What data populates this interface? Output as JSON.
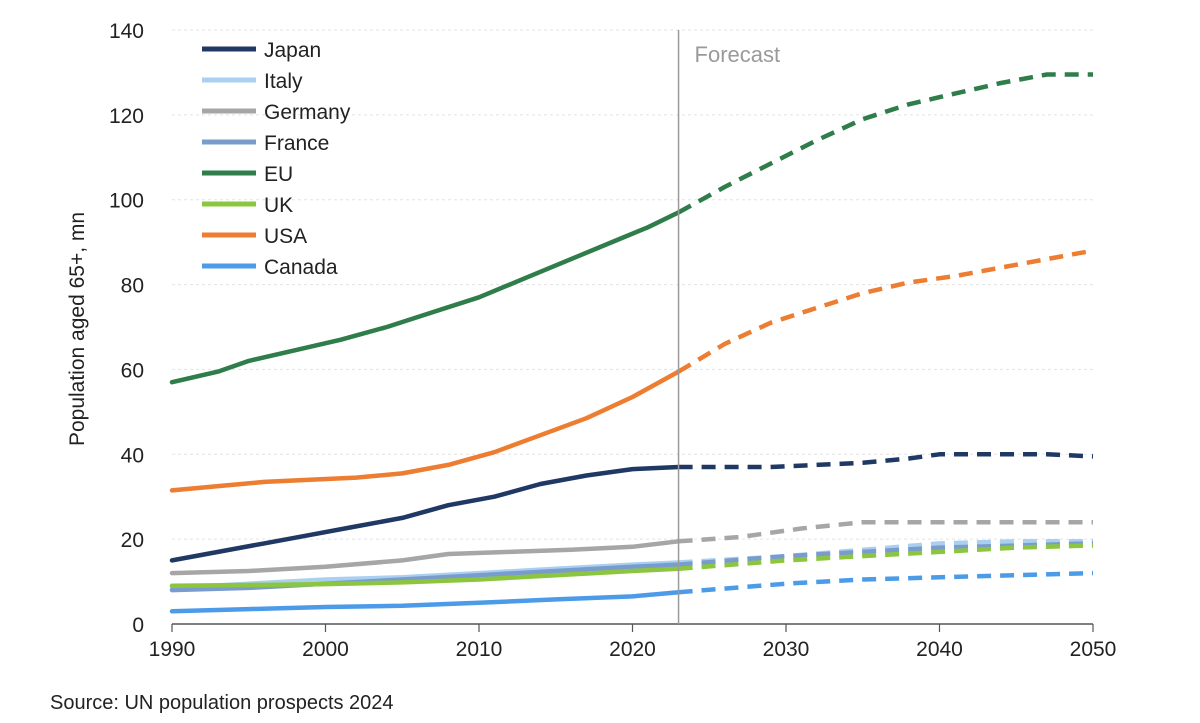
{
  "chart_data": {
    "type": "line",
    "title": "",
    "xlabel": "",
    "ylabel": "Population aged 65+, mn",
    "xlim": [
      1990,
      2050
    ],
    "ylim": [
      0,
      140
    ],
    "x_ticks": [
      1990,
      2000,
      2010,
      2020,
      2030,
      2040,
      2050
    ],
    "y_ticks": [
      0,
      20,
      40,
      60,
      80,
      100,
      120,
      140
    ],
    "forecast_start": 2023,
    "forecast_label": "Forecast",
    "legend_position": "top-left",
    "series": [
      {
        "name": "Japan",
        "color": "#1f3864",
        "points": [
          [
            1990,
            15
          ],
          [
            1993,
            17
          ],
          [
            1996,
            19
          ],
          [
            1999,
            21
          ],
          [
            2002,
            23
          ],
          [
            2005,
            25
          ],
          [
            2008,
            28
          ],
          [
            2011,
            30
          ],
          [
            2014,
            33
          ],
          [
            2017,
            35
          ],
          [
            2020,
            36.5
          ],
          [
            2023,
            37
          ],
          [
            2026,
            37
          ],
          [
            2029,
            37
          ],
          [
            2032,
            37.5
          ],
          [
            2035,
            38
          ],
          [
            2038,
            39
          ],
          [
            2040,
            40
          ],
          [
            2044,
            40
          ],
          [
            2047,
            40
          ],
          [
            2050,
            39.5
          ]
        ]
      },
      {
        "name": "Italy",
        "color": "#a9d0f1",
        "points": [
          [
            1990,
            8.5
          ],
          [
            1995,
            9.5
          ],
          [
            2000,
            10.5
          ],
          [
            2005,
            11
          ],
          [
            2010,
            12
          ],
          [
            2015,
            13
          ],
          [
            2020,
            14
          ],
          [
            2023,
            14.5
          ],
          [
            2030,
            16
          ],
          [
            2035,
            17.5
          ],
          [
            2040,
            19
          ],
          [
            2045,
            19.5
          ],
          [
            2050,
            19.5
          ]
        ]
      },
      {
        "name": "Germany",
        "color": "#a6a6a6",
        "points": [
          [
            1990,
            12
          ],
          [
            1995,
            12.5
          ],
          [
            2000,
            13.5
          ],
          [
            2005,
            15
          ],
          [
            2008,
            16.5
          ],
          [
            2012,
            17
          ],
          [
            2016,
            17.5
          ],
          [
            2020,
            18.2
          ],
          [
            2023,
            19.5
          ],
          [
            2027,
            20.5
          ],
          [
            2031,
            22.5
          ],
          [
            2035,
            24
          ],
          [
            2040,
            24
          ],
          [
            2045,
            24
          ],
          [
            2050,
            24
          ]
        ]
      },
      {
        "name": "France",
        "color": "#7a9ccd",
        "points": [
          [
            1990,
            8
          ],
          [
            1995,
            8.5
          ],
          [
            2000,
            9.5
          ],
          [
            2005,
            10.5
          ],
          [
            2010,
            11.5
          ],
          [
            2015,
            12.5
          ],
          [
            2020,
            13.5
          ],
          [
            2023,
            14
          ],
          [
            2030,
            16
          ],
          [
            2035,
            17
          ],
          [
            2040,
            18
          ],
          [
            2045,
            18.5
          ],
          [
            2050,
            19
          ]
        ]
      },
      {
        "name": "EU",
        "color": "#2e7d4a",
        "points": [
          [
            1990,
            57
          ],
          [
            1993,
            59.5
          ],
          [
            1995,
            62
          ],
          [
            1998,
            64.5
          ],
          [
            2001,
            67
          ],
          [
            2004,
            70
          ],
          [
            2007,
            73.5
          ],
          [
            2010,
            77
          ],
          [
            2013,
            81.5
          ],
          [
            2016,
            86
          ],
          [
            2019,
            90.5
          ],
          [
            2021,
            93.5
          ],
          [
            2023,
            97
          ],
          [
            2026,
            103
          ],
          [
            2029,
            108.5
          ],
          [
            2032,
            114
          ],
          [
            2035,
            119
          ],
          [
            2038,
            122.5
          ],
          [
            2041,
            125
          ],
          [
            2044,
            127.5
          ],
          [
            2047,
            129.5
          ],
          [
            2050,
            129.5
          ]
        ]
      },
      {
        "name": "UK",
        "color": "#8cc63f",
        "points": [
          [
            1990,
            9
          ],
          [
            1995,
            9.2
          ],
          [
            2000,
            9.4
          ],
          [
            2005,
            9.8
          ],
          [
            2010,
            10.5
          ],
          [
            2015,
            11.5
          ],
          [
            2020,
            12.5
          ],
          [
            2023,
            13
          ],
          [
            2030,
            15
          ],
          [
            2035,
            16
          ],
          [
            2040,
            17
          ],
          [
            2045,
            18
          ],
          [
            2050,
            18.5
          ]
        ]
      },
      {
        "name": "USA",
        "color": "#ed7d31",
        "points": [
          [
            1990,
            31.5
          ],
          [
            1993,
            32.5
          ],
          [
            1996,
            33.5
          ],
          [
            1999,
            34
          ],
          [
            2002,
            34.5
          ],
          [
            2005,
            35.5
          ],
          [
            2008,
            37.5
          ],
          [
            2011,
            40.5
          ],
          [
            2014,
            44.5
          ],
          [
            2017,
            48.5
          ],
          [
            2020,
            53.5
          ],
          [
            2023,
            59.5
          ],
          [
            2026,
            66
          ],
          [
            2029,
            71
          ],
          [
            2032,
            74.5
          ],
          [
            2035,
            78
          ],
          [
            2038,
            80.5
          ],
          [
            2041,
            82
          ],
          [
            2044,
            84
          ],
          [
            2047,
            86
          ],
          [
            2050,
            88
          ]
        ]
      },
      {
        "name": "Canada",
        "color": "#4c9be8",
        "points": [
          [
            1990,
            3
          ],
          [
            1995,
            3.5
          ],
          [
            2000,
            4
          ],
          [
            2005,
            4.3
          ],
          [
            2010,
            5
          ],
          [
            2015,
            5.8
          ],
          [
            2020,
            6.5
          ],
          [
            2023,
            7.5
          ],
          [
            2030,
            9.5
          ],
          [
            2035,
            10.5
          ],
          [
            2040,
            11
          ],
          [
            2045,
            11.5
          ],
          [
            2050,
            12
          ]
        ]
      }
    ]
  },
  "source": "Source: UN population prospects 2024"
}
